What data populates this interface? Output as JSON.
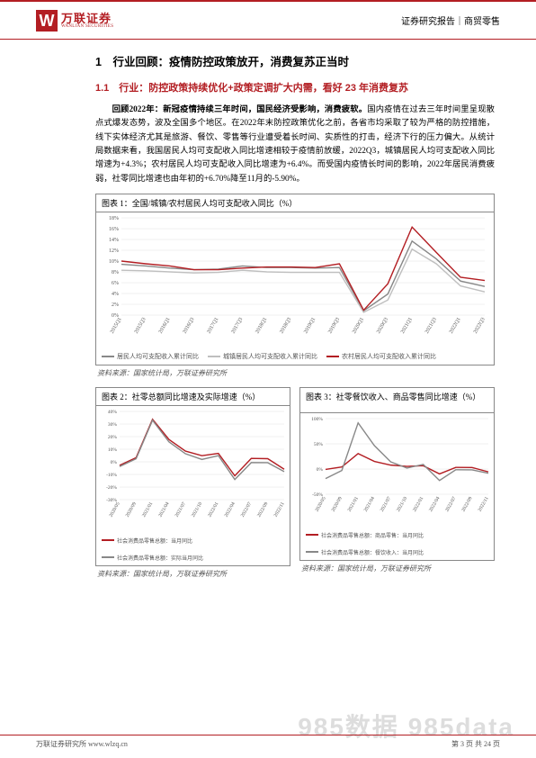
{
  "header": {
    "logo_cn": "万联证券",
    "logo_en": "WANLIAN SECURITIES",
    "logo_mark": "W",
    "right": "证券研究报告｜商贸零售"
  },
  "section": {
    "title": "1　行业回顾：疫情防控政策放开，消费复苏正当时",
    "subtitle": "1.1　行业：防控政策持续优化+政策定调扩大内需，看好 23 年消费复苏"
  },
  "paragraph": {
    "bold": "回顾2022年：新冠疫情持续三年时间，国民经济受影响，消费疲软。",
    "body": "国内疫情在过去三年时间里呈现散点式爆发态势，波及全国多个地区。在2022年末防控政策优化之前，各省市均采取了较为严格的防控措施，线下实体经济尤其是旅游、餐饮、零售等行业遭受着长时间、实质性的打击，经济下行的压力偏大。从统计局数据来看，我国居民人均可支配收入同比增速相较于疫情前放缓，2022Q3，城镇居民人均可支配收入同比增速为+4.3%；农村居民人均可支配收入同比增速为+6.4%。而受国内疫情长时间的影响，2022年居民消费疲弱，社零同比增速也由年初的+6.70%降至11月的-5.90%。"
  },
  "chart1": {
    "title": "图表 1：全国/城镇/农村居民人均可支配收入同比（%）",
    "type": "line",
    "xaxis": [
      "2015Q1",
      "2015Q3",
      "2016Q1",
      "2016Q3",
      "2017Q1",
      "2017Q3",
      "2018Q1",
      "2018Q3",
      "2019Q1",
      "2019Q3",
      "2020Q1",
      "2020Q3",
      "2021Q1",
      "2021Q3",
      "2022Q1",
      "2022Q3"
    ],
    "ylim": [
      0,
      18
    ],
    "ytick_step": 2,
    "grid_color": "#e0e0e0",
    "background": "#ffffff",
    "series": [
      {
        "name": "居民人均可支配收入累计同比",
        "color": "#888888",
        "values": [
          9.4,
          9.1,
          8.7,
          8.4,
          8.5,
          9.1,
          8.8,
          8.8,
          8.7,
          8.8,
          0.8,
          3.9,
          13.7,
          10.4,
          6.3,
          5.3
        ]
      },
      {
        "name": "城镇居民人均可支配收入累计同比",
        "color": "#bfbfbf",
        "values": [
          8.3,
          8.2,
          8.0,
          7.8,
          7.9,
          8.3,
          8.0,
          7.9,
          7.9,
          7.9,
          0.5,
          2.8,
          12.2,
          9.5,
          5.4,
          4.3
        ]
      },
      {
        "name": "农村居民人均可支配收入累计同比",
        "color": "#b31e23",
        "values": [
          10.0,
          9.5,
          9.1,
          8.4,
          8.4,
          8.7,
          8.9,
          8.9,
          8.8,
          9.5,
          0.9,
          5.8,
          16.3,
          11.6,
          7.0,
          6.4
        ]
      }
    ],
    "label_fontsize": 6,
    "source": "资料来源：国家统计局，万联证券研究所"
  },
  "chart2": {
    "title": "图表 2：社零总额同比增速及实际增速（%）",
    "type": "line",
    "xaxis": [
      "2020/05",
      "2020/09",
      "2021/01",
      "2021/04",
      "2021/07",
      "2021/10",
      "2022/01",
      "2022/04",
      "2022/07",
      "2022/09",
      "2022/11"
    ],
    "ylim": [
      -30,
      40
    ],
    "ytick_step": 10,
    "grid_color": "#e0e0e0",
    "background": "#ffffff",
    "series": [
      {
        "name": "社会消费品零售总额：当月同比",
        "color": "#b31e23",
        "values": [
          -2.8,
          3.3,
          33.8,
          17.7,
          8.5,
          4.9,
          6.7,
          -11.1,
          2.7,
          2.5,
          -5.9
        ]
      },
      {
        "name": "社会消费品零售总额：实际当月同比",
        "color": "#888888",
        "values": [
          -3.7,
          2.4,
          33.0,
          15.8,
          6.4,
          1.9,
          4.9,
          -14.0,
          -0.6,
          -0.7,
          -7.8
        ]
      }
    ],
    "label_fontsize": 5.5,
    "source": "资料来源：国家统计局，万联证券研究所"
  },
  "chart3": {
    "title": "图表 3：社零餐饮收入、商品零售同比增速（%）",
    "type": "line",
    "xaxis": [
      "2020/05",
      "2020/09",
      "2021/01",
      "2021/04",
      "2021/07",
      "2021/10",
      "2022/01",
      "2022/04",
      "2022/07",
      "2022/09",
      "2022/11"
    ],
    "ylim": [
      -50,
      100
    ],
    "ytick_step": 50,
    "grid_color": "#e0e0e0",
    "background": "#ffffff",
    "series": [
      {
        "name": "社会消费品零售总额：商品零售：当月同比",
        "color": "#b31e23",
        "values": [
          -0.8,
          4.1,
          30.6,
          15.1,
          7.8,
          5.2,
          6.5,
          -9.7,
          3.2,
          3.0,
          -5.6
        ]
      },
      {
        "name": "社会消费品零售总额：餐饮收入：当月同比",
        "color": "#888888",
        "values": [
          -18.9,
          -2.9,
          91.6,
          46.4,
          14.3,
          2.0,
          9.2,
          -22.7,
          -1.5,
          -1.7,
          -8.4
        ]
      }
    ],
    "label_fontsize": 5.5,
    "source": "资料来源：国家统计局，万联证券研究所"
  },
  "footer": {
    "left": "万联证券研究所 www.wlzq.cn",
    "right": "第 3 页 共 24 页"
  },
  "watermark": "985数据  985data"
}
